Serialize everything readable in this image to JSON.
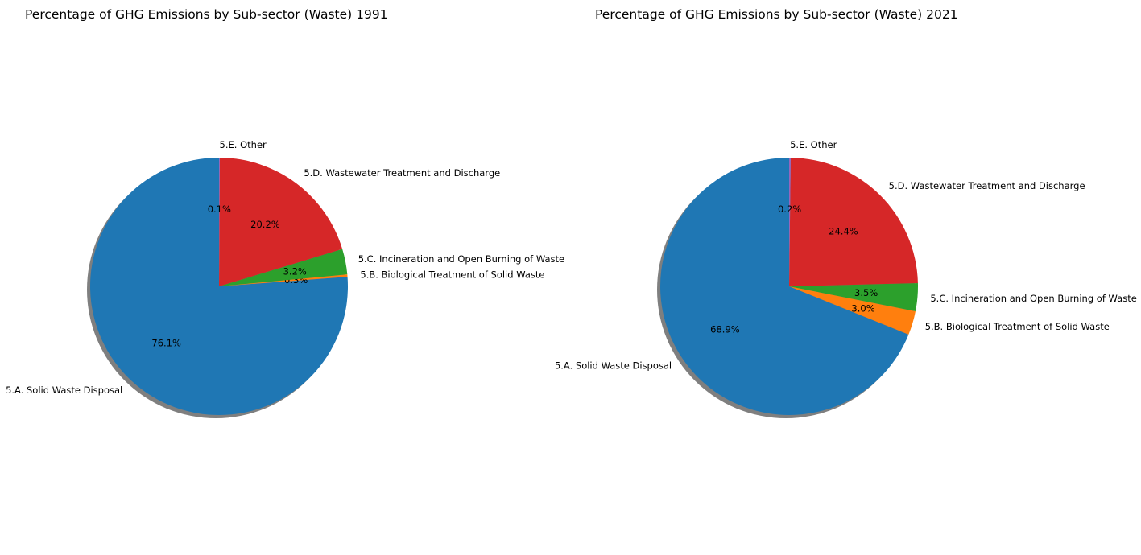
{
  "chart_data": [
    {
      "type": "pie",
      "title": "Percentage of GHG Emissions by Sub-sector (Waste) 1991",
      "categories": [
        "5.A. Solid Waste Disposal",
        "5.B. Biological Treatment of Solid Waste",
        "5.C. Incineration and Open Burning of Waste",
        "5.D. Wastewater Treatment and Discharge",
        "5.E. Other"
      ],
      "values": [
        76.1,
        0.3,
        3.2,
        20.2,
        0.1
      ],
      "percent_labels": [
        "76.1%",
        "0.3%",
        "3.2%",
        "20.2%",
        "0.1%"
      ],
      "colors": [
        "#1f77b4",
        "#ff7f0e",
        "#2ca02c",
        "#d62728",
        "#9467bd"
      ],
      "start_angle_deg": 90,
      "direction": "counterclockwise",
      "shadow": true
    },
    {
      "type": "pie",
      "title": "Percentage of GHG Emissions by Sub-sector (Waste) 2021",
      "categories": [
        "5.A. Solid Waste Disposal",
        "5.B. Biological Treatment of Solid Waste",
        "5.C. Incineration and Open Burning of Waste",
        "5.D. Wastewater Treatment and Discharge",
        "5.E. Other"
      ],
      "values": [
        68.9,
        3.0,
        3.5,
        24.4,
        0.2
      ],
      "percent_labels": [
        "68.9%",
        "3.0%",
        "3.5%",
        "24.4%",
        "0.2%"
      ],
      "colors": [
        "#1f77b4",
        "#ff7f0e",
        "#2ca02c",
        "#d62728",
        "#9467bd"
      ],
      "start_angle_deg": 90,
      "direction": "counterclockwise",
      "shadow": true
    }
  ]
}
